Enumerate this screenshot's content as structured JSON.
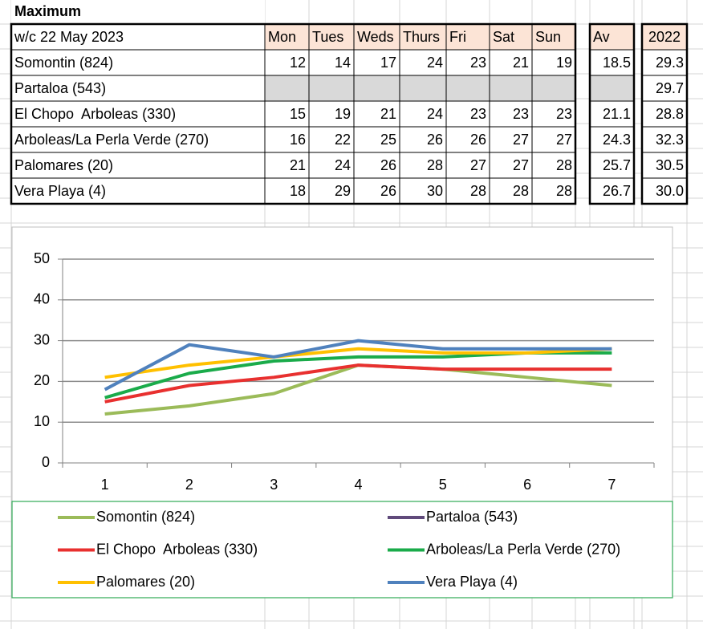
{
  "table": {
    "title": "Maximum",
    "header": [
      "w/c 22 May 2023",
      "Mon",
      "Tues",
      "Weds",
      "Thurs",
      "Fri",
      "Sat",
      "Sun",
      "Av",
      "2022"
    ],
    "rows": [
      [
        "Somontin (824)",
        "12",
        "14",
        "17",
        "24",
        "23",
        "21",
        "19",
        "18.5",
        "29.3"
      ],
      [
        "Partaloa (543)",
        null,
        null,
        null,
        null,
        null,
        null,
        null,
        null,
        "29.7"
      ],
      [
        "El Chopo  Arboleas (330)",
        "15",
        "19",
        "21",
        "24",
        "23",
        "23",
        "23",
        "21.1",
        "28.8"
      ],
      [
        "Arboleas/La Perla Verde (270)",
        "16",
        "22",
        "25",
        "26",
        "26",
        "27",
        "27",
        "24.3",
        "32.3"
      ],
      [
        "Palomares (20)",
        "21",
        "24",
        "26",
        "28",
        "27",
        "27",
        "28",
        "25.7",
        "30.5"
      ],
      [
        "Vera Playa (4)",
        "18",
        "29",
        "26",
        "30",
        "28",
        "28",
        "28",
        "26.7",
        "30.0"
      ]
    ]
  },
  "chart_data": {
    "type": "line",
    "categories": [
      1,
      2,
      3,
      4,
      5,
      6,
      7
    ],
    "series": [
      {
        "name": "Somontin (824)",
        "color": "#9bbb59",
        "values": [
          12,
          14,
          17,
          24,
          23,
          21,
          19
        ]
      },
      {
        "name": "Partaloa (543)",
        "color": "#604a7b",
        "values": [
          null,
          null,
          null,
          null,
          null,
          null,
          null
        ]
      },
      {
        "name": "El Chopo  Arboleas (330)",
        "color": "#e8302f",
        "values": [
          15,
          19,
          21,
          24,
          23,
          23,
          23
        ]
      },
      {
        "name": "Arboleas/La Perla Verde (270)",
        "color": "#1aab4a",
        "values": [
          16,
          22,
          25,
          26,
          26,
          27,
          27
        ]
      },
      {
        "name": "Palomares (20)",
        "color": "#ffc000",
        "values": [
          21,
          24,
          26,
          28,
          27,
          27,
          28
        ]
      },
      {
        "name": "Vera Playa (4)",
        "color": "#4f81bd",
        "values": [
          18,
          29,
          26,
          30,
          28,
          28,
          28
        ]
      }
    ],
    "ylim": [
      0,
      50
    ],
    "yticks": [
      0,
      10,
      20,
      30,
      40,
      50
    ],
    "grid": true,
    "legend": "bottom"
  }
}
